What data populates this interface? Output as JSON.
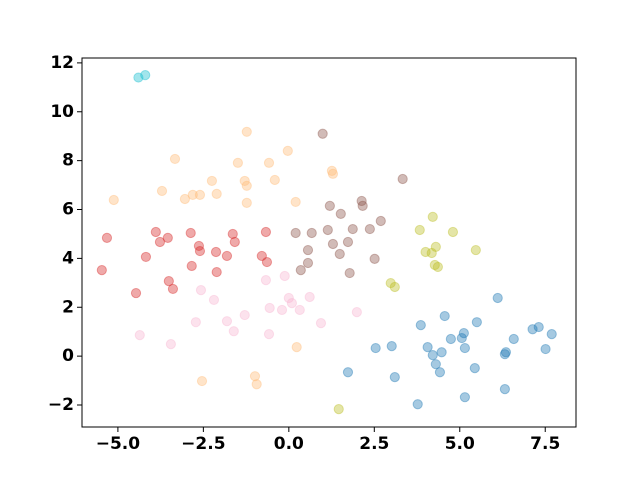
{
  "chart_data": {
    "type": "scatter",
    "opacity": 0.4,
    "xlim": [
      -6.05,
      8.4
    ],
    "ylim": [
      -2.9,
      12.2
    ],
    "xticks": [
      {
        "value": -5,
        "label": "−5.0"
      },
      {
        "value": -2.5,
        "label": "−2.5"
      },
      {
        "value": 0,
        "label": "0.0"
      },
      2.5,
      {
        "value": 5,
        "label": "5.0"
      },
      7.5
    ],
    "yticks": [
      {
        "value": -2,
        "label": "−2"
      },
      0,
      2,
      4,
      6,
      8,
      10,
      12
    ],
    "series": [
      {
        "color": "#1f77b4",
        "x": [
          1.73,
          2.54,
          3.01,
          3.1,
          3.86,
          3.77,
          4.06,
          4.21,
          4.3,
          4.42,
          4.47,
          4.56,
          4.74,
          5.06,
          5.12,
          5.15,
          5.15,
          5.44,
          5.5,
          6.11,
          6.32,
          6.35,
          6.32,
          6.58,
          7.13,
          7.31,
          7.51,
          7.69
        ],
        "y": [
          -0.66,
          0.33,
          0.41,
          -0.86,
          1.27,
          -1.97,
          0.37,
          0.04,
          -0.33,
          -0.66,
          0.16,
          1.64,
          0.7,
          0.74,
          0.94,
          0.33,
          -1.68,
          -0.49,
          1.39,
          2.38,
          0.08,
          0.16,
          -1.35,
          0.7,
          1.1,
          1.19,
          0.29,
          0.9
        ]
      },
      {
        "color": "#ffbb78",
        "x": [
          -1.23,
          -0.03,
          -3.33,
          -1.49,
          -0.58,
          -3.71,
          -5.12,
          -2.25,
          -1.29,
          -1.23,
          -0.41,
          1.29,
          1.26,
          -3.04,
          -2.81,
          -2.6,
          -2.11,
          -1.23,
          0.2,
          0.23,
          -2.54,
          -0.99,
          -0.94
        ],
        "y": [
          9.18,
          8.4,
          8.07,
          7.91,
          7.91,
          6.76,
          6.39,
          7.17,
          7.17,
          6.97,
          7.21,
          7.46,
          7.58,
          6.43,
          6.6,
          6.6,
          6.64,
          6.27,
          6.31,
          0.37,
          -1.02,
          -0.82,
          -1.15
        ]
      },
      {
        "color": "#bcbd22",
        "x": [
          3.83,
          4.21,
          4.0,
          4.18,
          4.3,
          4.27,
          4.36,
          4.8,
          5.47,
          2.98,
          3.1,
          1.46
        ],
        "y": [
          5.16,
          5.7,
          4.26,
          4.22,
          4.47,
          3.73,
          3.65,
          5.08,
          4.34,
          2.99,
          2.83,
          -2.17
        ]
      },
      {
        "color": "#d62728",
        "x": [
          -5.32,
          -5.47,
          -3.89,
          -3.77,
          -3.54,
          -4.18,
          -3.51,
          -3.39,
          -4.47,
          -2.87,
          -2.63,
          -2.6,
          -2.84,
          -2.13,
          -2.11,
          -1.81,
          -1.64,
          -1.58,
          -0.67,
          -0.79,
          -0.64
        ],
        "y": [
          4.84,
          3.52,
          5.08,
          4.67,
          4.84,
          4.06,
          3.07,
          2.75,
          2.58,
          5.04,
          4.51,
          4.3,
          3.69,
          4.26,
          3.44,
          4.1,
          5.0,
          4.67,
          5.08,
          4.1,
          3.85
        ]
      },
      {
        "color": "#8c564b",
        "x": [
          0.99,
          3.33,
          2.13,
          2.16,
          1.2,
          1.52,
          1.14,
          0.67,
          0.2,
          2.37,
          2.69,
          1.87,
          1.29,
          1.73,
          1.49,
          0.56,
          0.56,
          0.35,
          1.78,
          2.51
        ],
        "y": [
          9.1,
          7.25,
          6.35,
          6.15,
          6.15,
          5.82,
          5.16,
          5.04,
          5.04,
          5.2,
          5.53,
          5.2,
          4.59,
          4.67,
          4.18,
          4.34,
          3.81,
          3.52,
          3.4,
          3.98
        ]
      },
      {
        "color": "#f7b6d2",
        "x": [
          -4.36,
          -3.45,
          -2.57,
          -2.19,
          -2.72,
          -1.81,
          -1.61,
          -1.29,
          -0.67,
          -0.56,
          -0.58,
          -0.12,
          0.0,
          -0.2,
          0.09,
          0.32,
          0.61,
          0.94,
          1.99
        ],
        "y": [
          0.86,
          0.49,
          2.7,
          2.3,
          1.39,
          1.43,
          1.02,
          1.68,
          3.11,
          1.97,
          0.9,
          3.28,
          2.38,
          1.89,
          2.17,
          1.89,
          2.42,
          1.35,
          1.8
        ]
      },
      {
        "color": "#17becf",
        "x": [
          -4.4,
          -4.2
        ],
        "y": [
          11.4,
          11.5
        ]
      }
    ]
  }
}
